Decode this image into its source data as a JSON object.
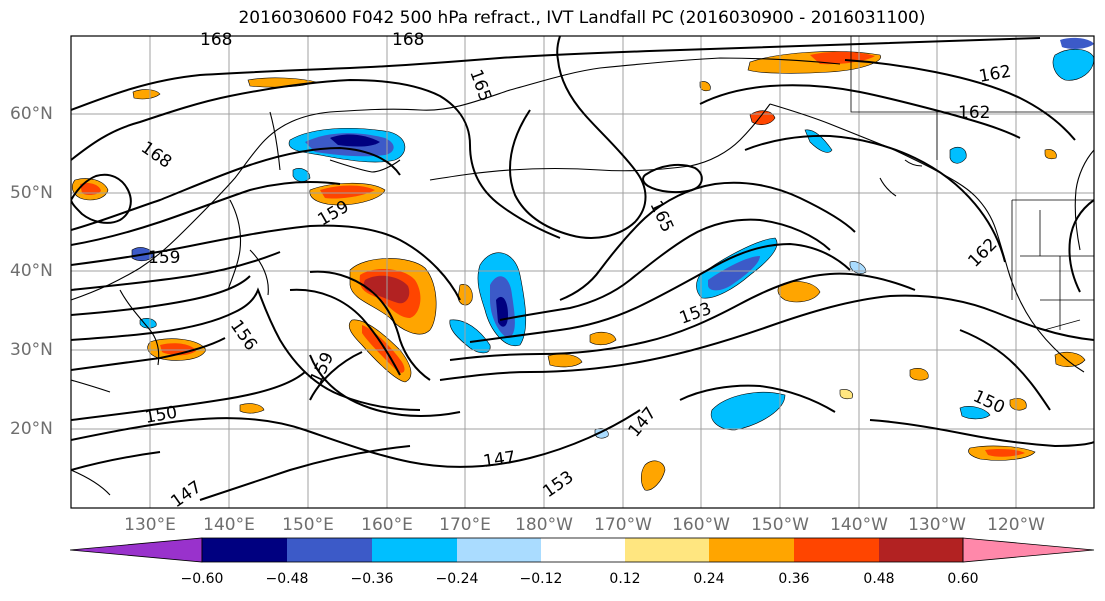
{
  "title": "2016030600 F042 500 hPa refract., IVT Landfall PC (2016030900 - 2016031100)",
  "lat_labels": [
    "60°N",
    "50°N",
    "40°N",
    "30°N",
    "20°N"
  ],
  "lon_labels": [
    "130°E",
    "140°E",
    "150°E",
    "160°E",
    "170°E",
    "180°W",
    "170°W",
    "160°W",
    "150°W",
    "140°W",
    "130°W",
    "120°W"
  ],
  "contour_labels": [
    "168",
    "168",
    "168",
    "165",
    "165",
    "162",
    "162",
    "162",
    "159",
    "159",
    "159",
    "156",
    "153",
    "153",
    "150",
    "150",
    "147",
    "147",
    "147"
  ],
  "colorbar": {
    "ticks": [
      "−0.60",
      "−0.48",
      "−0.36",
      "−0.24",
      "−0.12",
      "0.12",
      "0.24",
      "0.36",
      "0.48",
      "0.60"
    ],
    "colors": [
      "#9932cc",
      "#000080",
      "#3c5ac8",
      "#00bfff",
      "#aadcff",
      "#ffffff",
      "#ffe680",
      "#ffa500",
      "#ff4500",
      "#b22222",
      "#ff88aa"
    ]
  }
}
